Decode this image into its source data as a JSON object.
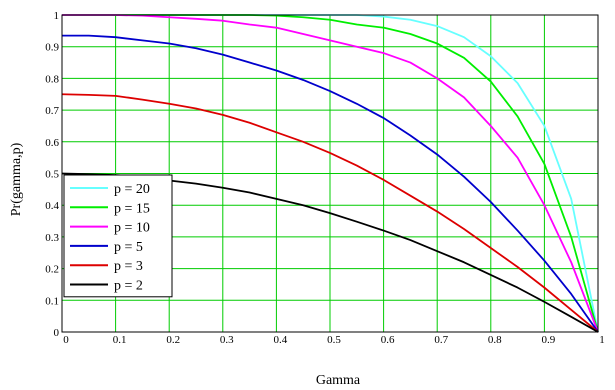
{
  "chart_data": {
    "type": "line",
    "title": "",
    "xlabel": "Gamma",
    "ylabel": "Pr(gamma,p)",
    "xlim": [
      0,
      1
    ],
    "ylim": [
      0,
      1
    ],
    "grid": true,
    "grid_color": "#00cc00",
    "legend_position": "bottom-left",
    "x_ticks": [
      "0",
      "0.1",
      "0.2",
      "0.3",
      "0.4",
      "0.5",
      "0.6",
      "0.7",
      "0.8",
      "0.9",
      "1"
    ],
    "y_ticks": [
      "0",
      "0.1",
      "0.2",
      "0.3",
      "0.4",
      "0.5",
      "0.6",
      "0.7",
      "0.8",
      "0.9",
      "1"
    ],
    "x": [
      0,
      0.05,
      0.1,
      0.15,
      0.2,
      0.25,
      0.3,
      0.35,
      0.4,
      0.45,
      0.5,
      0.55,
      0.6,
      0.65,
      0.7,
      0.75,
      0.8,
      0.85,
      0.9,
      0.95,
      1.0
    ],
    "series": [
      {
        "name": "p = 20",
        "color": "#66ffff",
        "values": [
          1,
          1,
          1,
          1,
          1,
          1,
          1,
          1,
          1,
          1,
          1,
          1,
          0.995,
          0.985,
          0.965,
          0.93,
          0.87,
          0.785,
          0.65,
          0.42,
          0
        ]
      },
      {
        "name": "p = 15",
        "color": "#00ee00",
        "values": [
          1,
          1,
          1,
          1,
          1,
          1,
          1,
          1,
          0.998,
          0.993,
          0.985,
          0.97,
          0.96,
          0.94,
          0.91,
          0.865,
          0.79,
          0.68,
          0.53,
          0.3,
          0
        ]
      },
      {
        "name": "p = 10",
        "color": "#ff00ff",
        "values": [
          1,
          1,
          1,
          0.998,
          0.993,
          0.988,
          0.982,
          0.97,
          0.96,
          0.94,
          0.92,
          0.9,
          0.88,
          0.85,
          0.8,
          0.74,
          0.65,
          0.55,
          0.4,
          0.22,
          0
        ]
      },
      {
        "name": "p = 5",
        "color": "#0000cc",
        "values": [
          0.935,
          0.935,
          0.93,
          0.92,
          0.91,
          0.895,
          0.875,
          0.85,
          0.825,
          0.795,
          0.76,
          0.72,
          0.675,
          0.62,
          0.56,
          0.49,
          0.41,
          0.32,
          0.225,
          0.12,
          0
        ]
      },
      {
        "name": "p = 3",
        "color": "#dd0000",
        "values": [
          0.75,
          0.748,
          0.745,
          0.733,
          0.72,
          0.705,
          0.685,
          0.66,
          0.63,
          0.6,
          0.565,
          0.525,
          0.48,
          0.43,
          0.38,
          0.325,
          0.265,
          0.205,
          0.14,
          0.07,
          0
        ]
      },
      {
        "name": "p = 2",
        "color": "#000000",
        "values": [
          0.5,
          0.498,
          0.495,
          0.49,
          0.478,
          0.468,
          0.455,
          0.44,
          0.42,
          0.4,
          0.375,
          0.348,
          0.32,
          0.29,
          0.255,
          0.22,
          0.18,
          0.14,
          0.095,
          0.048,
          0
        ]
      }
    ]
  }
}
